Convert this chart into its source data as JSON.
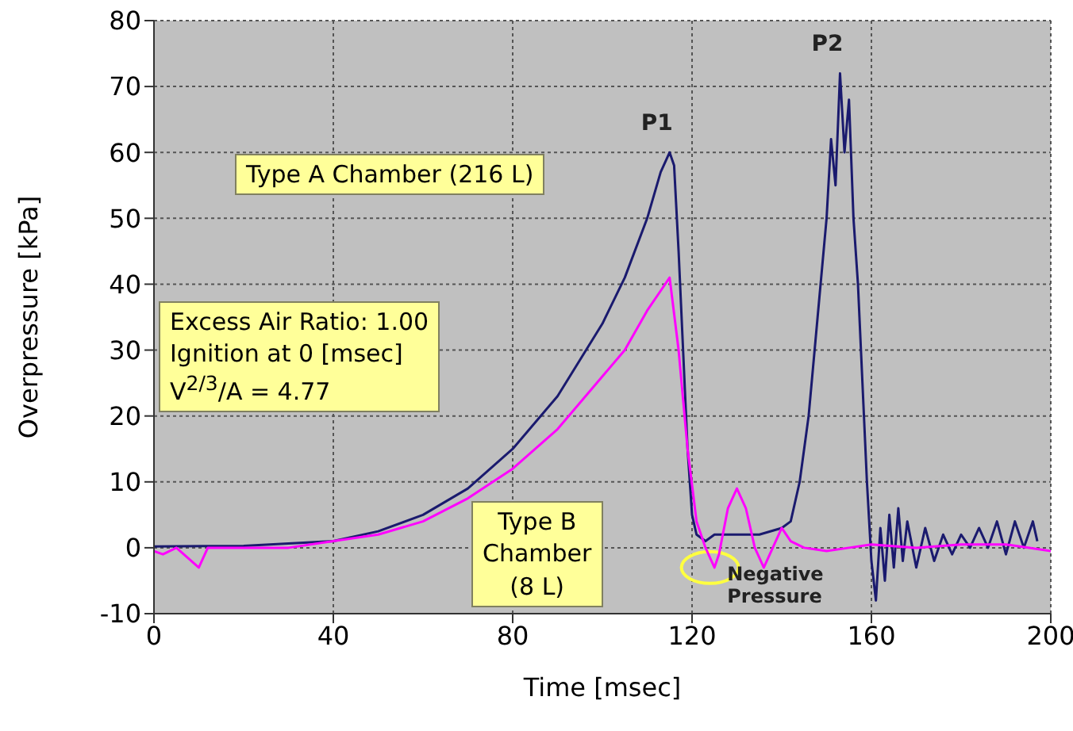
{
  "chart_data": {
    "type": "line",
    "xlabel": "Time [msec]",
    "ylabel": "Overpressure [kPa]",
    "xlim": [
      0,
      200
    ],
    "xticks": [
      0,
      40,
      80,
      120,
      160,
      200
    ],
    "ylim": [
      -10,
      80
    ],
    "yticks": [
      -10,
      0,
      10,
      20,
      30,
      40,
      50,
      60,
      70,
      80
    ],
    "grid": true,
    "legend": false,
    "marker": "none",
    "line_style": "solid",
    "series": [
      {
        "color": "#1a1a6e",
        "x": [
          0,
          20,
          40,
          50,
          60,
          70,
          80,
          90,
          100,
          105,
          110,
          113,
          115,
          116,
          117,
          118,
          119,
          120,
          121,
          123,
          125,
          130,
          135,
          140,
          142,
          144,
          146,
          148,
          150,
          151,
          152,
          153,
          154,
          155,
          156,
          157,
          158,
          159,
          160,
          161,
          162,
          163,
          164,
          165,
          166,
          167,
          168,
          170,
          172,
          174,
          176,
          178,
          180,
          182,
          184,
          186,
          188,
          190,
          192,
          194,
          196,
          197
        ],
        "values": [
          0.2,
          0.3,
          1,
          2.5,
          5,
          9,
          15,
          23,
          34,
          41,
          50,
          57,
          60,
          58,
          45,
          30,
          15,
          5,
          2,
          1,
          2,
          2,
          2,
          3,
          4,
          10,
          20,
          35,
          50,
          62,
          55,
          72,
          60,
          68,
          50,
          40,
          25,
          10,
          -2,
          -8,
          3,
          -5,
          5,
          -3,
          6,
          -2,
          4,
          -3,
          3,
          -2,
          2,
          -1,
          2,
          0,
          3,
          0,
          4,
          -1,
          4,
          0,
          4,
          1
        ]
      },
      {
        "color": "#ff00ff",
        "x": [
          0,
          2,
          5,
          10,
          12,
          20,
          30,
          40,
          50,
          60,
          70,
          80,
          90,
          100,
          105,
          110,
          113,
          115,
          117,
          119,
          121,
          123,
          125,
          126,
          128,
          130,
          132,
          134,
          136,
          138,
          140,
          142,
          145,
          150,
          155,
          160,
          170,
          180,
          190,
          200
        ],
        "values": [
          -0.5,
          -1,
          0,
          -3,
          0,
          0,
          0,
          1,
          2,
          4,
          7.5,
          12,
          18,
          26,
          30,
          36,
          39,
          41,
          30,
          15,
          4,
          0,
          -3,
          -1,
          6,
          9,
          6,
          0,
          -3,
          0,
          3,
          1,
          0,
          -0.5,
          0,
          0.5,
          0,
          0.5,
          0.5,
          -0.5
        ]
      }
    ],
    "annotations": [
      {
        "text": "P1",
        "x": 115,
        "y": 60
      },
      {
        "text": "P2",
        "x": 153,
        "y": 72
      },
      "Type A Chamber (216 L)",
      "Excess Air Ratio: 1.00\nIgnition at 0 [msec]\nV$^{2/3}$/A = 4.77",
      "Type B\nChamber\n(8 L)",
      {
        "text": "Negative\nPressure",
        "x": 125,
        "y": -3
      }
    ]
  }
}
